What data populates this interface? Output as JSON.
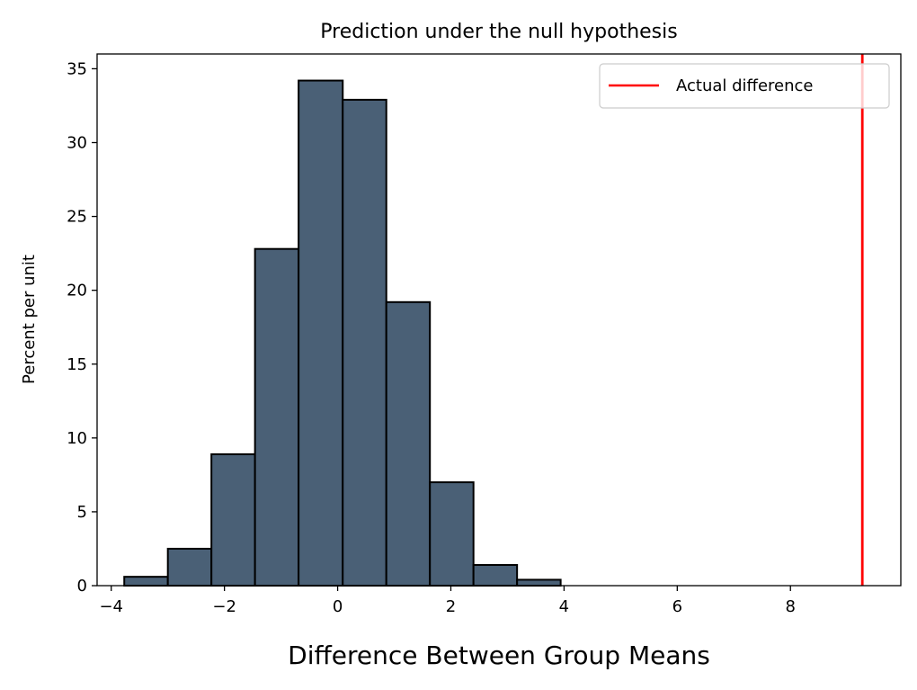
{
  "chart_data": {
    "type": "bar",
    "title": "Prediction under the null hypothesis",
    "xlabel": "Difference Between Group Means",
    "ylabel": "Percent per unit",
    "xlim": [
      -4.25,
      9.95
    ],
    "ylim": [
      0,
      36
    ],
    "xticks": [
      -4,
      -2,
      0,
      2,
      4,
      6,
      8
    ],
    "xtick_labels": [
      "−4",
      "−2",
      "0",
      "2",
      "4",
      "6",
      "8"
    ],
    "yticks": [
      0,
      5,
      10,
      15,
      20,
      25,
      30,
      35
    ],
    "ytick_labels": [
      "0",
      "5",
      "10",
      "15",
      "20",
      "25",
      "30",
      "35"
    ],
    "bins": [
      {
        "start": -3.77,
        "end": -3.0,
        "value": 0.6
      },
      {
        "start": -3.0,
        "end": -2.23,
        "value": 2.5
      },
      {
        "start": -2.23,
        "end": -1.46,
        "value": 8.9
      },
      {
        "start": -1.46,
        "end": -0.69,
        "value": 22.8
      },
      {
        "start": -0.69,
        "end": 0.09,
        "value": 34.2
      },
      {
        "start": 0.09,
        "end": 0.86,
        "value": 32.9
      },
      {
        "start": 0.86,
        "end": 1.63,
        "value": 19.2
      },
      {
        "start": 1.63,
        "end": 2.4,
        "value": 7.0
      },
      {
        "start": 2.4,
        "end": 3.17,
        "value": 1.4
      },
      {
        "start": 3.17,
        "end": 3.94,
        "value": 0.4
      }
    ],
    "bar_color": "#4a6076",
    "bar_edge_color": "#000000",
    "reference_line": {
      "label": "Actual difference",
      "x": 9.27,
      "color": "#ff0000"
    },
    "legend": {
      "position": "top-right",
      "entries": [
        "Actual difference"
      ]
    },
    "grid": false
  }
}
